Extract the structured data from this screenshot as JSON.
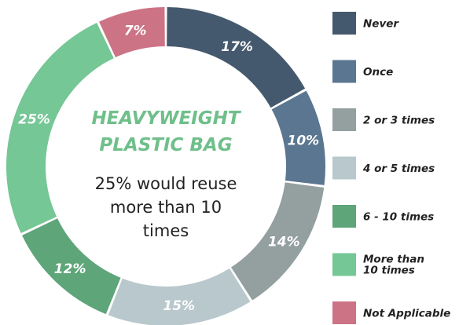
{
  "chart_data": {
    "type": "pie",
    "title": [
      "HEAVYWEIGHT",
      "PLASTIC BAG"
    ],
    "subtitle": [
      "25% would reuse",
      "more than 10",
      "times"
    ],
    "categories": [
      "Never",
      "Once",
      "2 or 3 times",
      "4 or 5 times",
      "6 - 10 times",
      "More than 10 times",
      "Not Applicable"
    ],
    "legend_labels": [
      [
        "Never"
      ],
      [
        "Once"
      ],
      [
        "2 or 3 times"
      ],
      [
        "4 or 5 times"
      ],
      [
        "6 - 10 times"
      ],
      [
        "More than",
        "10 times"
      ],
      [
        "Not Applicable"
      ]
    ],
    "values": [
      17,
      10,
      14,
      15,
      12,
      25,
      7
    ],
    "value_labels": [
      "17%",
      "10%",
      "14%",
      "15%",
      "12%",
      "25%",
      "7%"
    ],
    "colors": [
      "#45596e",
      "#5b7690",
      "#949fa0",
      "#b8c8cc",
      "#5ea57a",
      "#75c795",
      "#cd7386"
    ],
    "donut": true,
    "legend_position": "right"
  }
}
